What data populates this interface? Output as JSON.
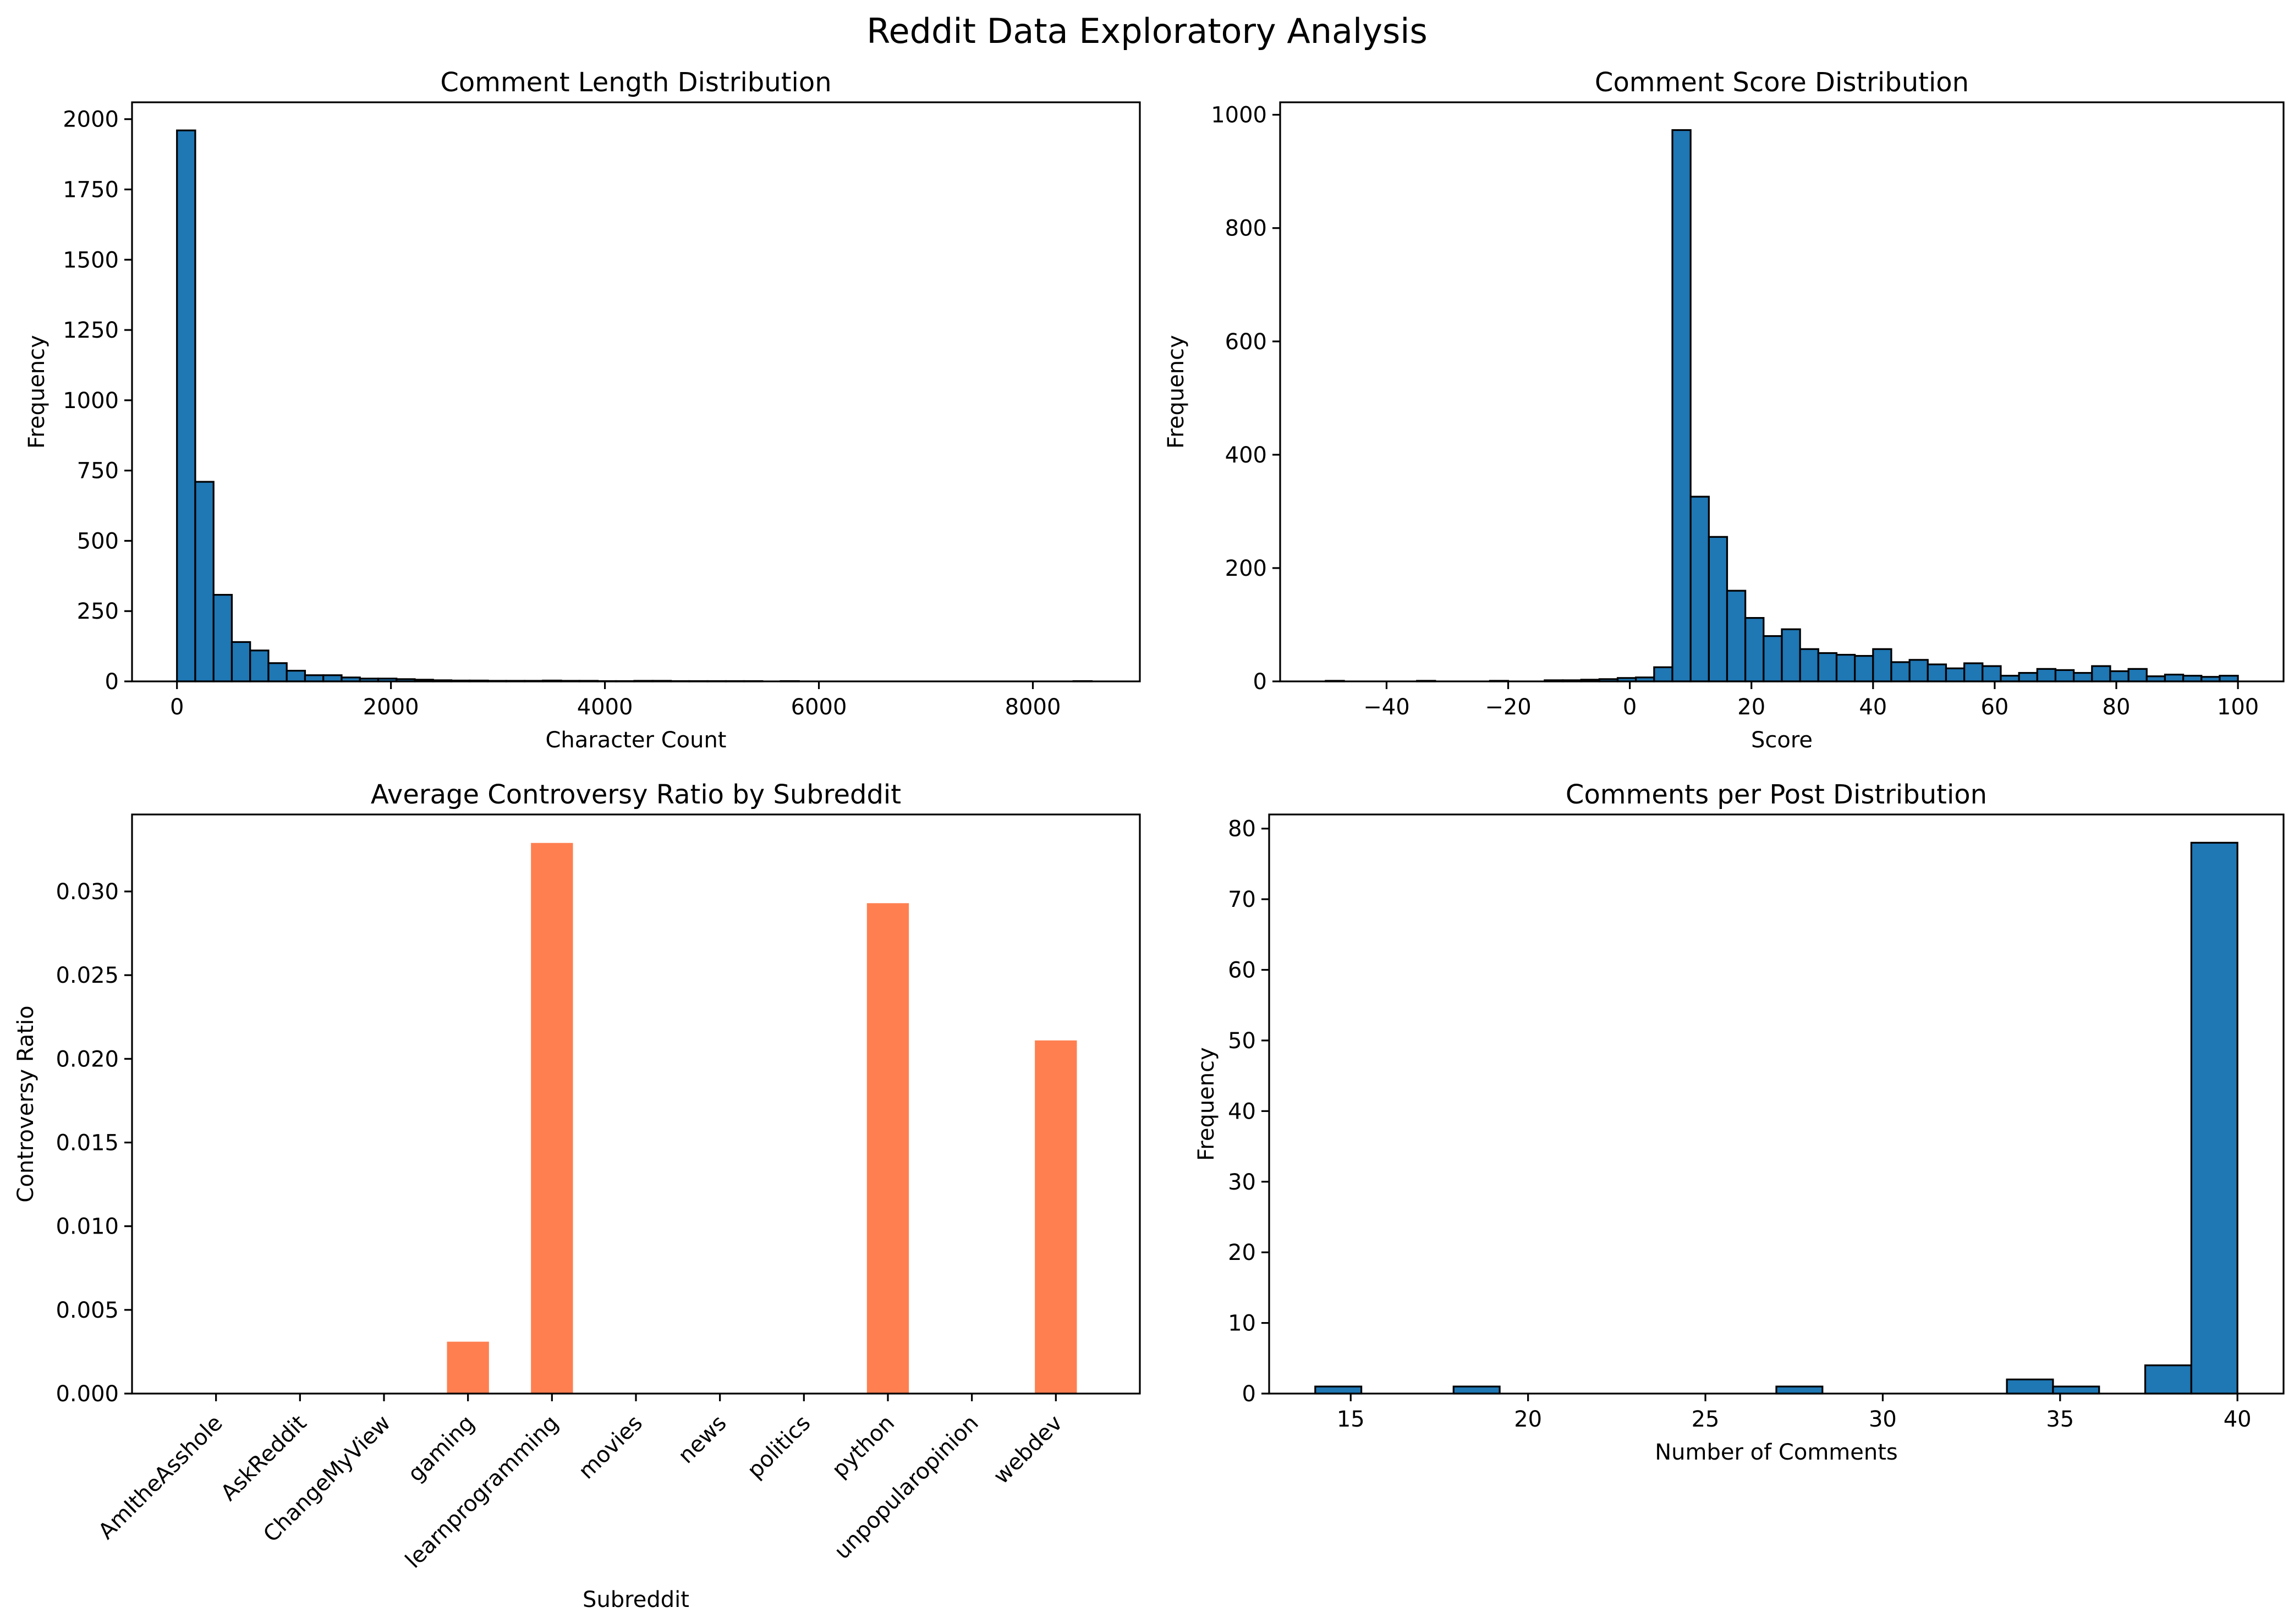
{
  "figure": {
    "title": "Reddit Data Exploratory Analysis"
  },
  "colors": {
    "hist_fill": "#1f77b4",
    "bar_fill": "#ff7f50",
    "edge": "#000000"
  },
  "chart_data": [
    {
      "type": "bar",
      "title": "Comment Length Distribution",
      "xlabel": "Character Count",
      "ylabel": "Frequency",
      "xlim": [
        -420,
        9000
      ],
      "ylim": [
        0,
        2060
      ],
      "xticks": [
        0,
        2000,
        4000,
        6000,
        8000
      ],
      "yticks": [
        0,
        250,
        500,
        750,
        1000,
        1250,
        1500,
        1750,
        2000
      ],
      "bin_start": 0,
      "bin_width": 171,
      "values": [
        1960,
        710,
        308,
        140,
        110,
        65,
        38,
        22,
        22,
        14,
        10,
        10,
        8,
        6,
        4,
        3,
        3,
        2,
        2,
        2,
        3,
        2,
        2,
        1,
        1,
        2,
        2,
        1,
        1,
        1,
        1,
        1,
        0,
        1,
        0,
        0,
        0,
        0,
        0,
        0,
        0,
        0,
        0,
        0,
        0,
        0,
        0,
        0,
        0,
        1
      ]
    },
    {
      "type": "bar",
      "title": "Comment Score Distribution",
      "xlabel": "Score",
      "ylabel": "Frequency",
      "xlim": [
        -57.5,
        107.5
      ],
      "ylim": [
        0,
        1022
      ],
      "xticks": [
        -40,
        -20,
        0,
        20,
        40,
        60,
        80,
        100
      ],
      "yticks": [
        0,
        200,
        400,
        600,
        800,
        1000
      ],
      "bin_start": -50,
      "bin_width": 3,
      "values": [
        1,
        0,
        0,
        0,
        0,
        1,
        0,
        0,
        0,
        1,
        0,
        0,
        2,
        2,
        3,
        4,
        6,
        7,
        25,
        973,
        326,
        255,
        160,
        112,
        80,
        92,
        57,
        50,
        47,
        45,
        57,
        34,
        38,
        30,
        23,
        32,
        27,
        10,
        15,
        22,
        20,
        15,
        27,
        18,
        22,
        9,
        12,
        10,
        8,
        10
      ]
    },
    {
      "type": "bar",
      "title": "Average Controversy Ratio by Subreddit",
      "xlabel": "Subreddit",
      "ylabel": "Controversy Ratio",
      "ylim": [
        0,
        0.0346
      ],
      "yticks": [
        0,
        0.005,
        0.01,
        0.015,
        0.02,
        0.025,
        0.03
      ],
      "ytick_labels": [
        "0.000",
        "0.005",
        "0.010",
        "0.015",
        "0.020",
        "0.025",
        "0.030"
      ],
      "categories": [
        "AmItheAsshole",
        "AskReddit",
        "ChangeMyView",
        "gaming",
        "learnprogramming",
        "movies",
        "news",
        "politics",
        "python",
        "unpopularopinion",
        "webdev"
      ],
      "values": [
        0,
        0,
        0,
        0.0031,
        0.0329,
        0,
        0,
        0,
        0.0293,
        0,
        0.0211
      ]
    },
    {
      "type": "bar",
      "title": "Comments per Post Distribution",
      "xlabel": "Number of Comments",
      "ylabel": "Frequency",
      "xlim": [
        12.7,
        41.3
      ],
      "ylim": [
        0,
        82
      ],
      "xticks": [
        15,
        20,
        25,
        30,
        35,
        40
      ],
      "yticks": [
        0,
        10,
        20,
        30,
        40,
        50,
        60,
        70,
        80
      ],
      "bin_start": 14,
      "bin_width": 1.3,
      "values": [
        1,
        0,
        0,
        1,
        0,
        0,
        0,
        0,
        0,
        0,
        1,
        0,
        0,
        0,
        0,
        2,
        1,
        0,
        4,
        78
      ]
    }
  ]
}
